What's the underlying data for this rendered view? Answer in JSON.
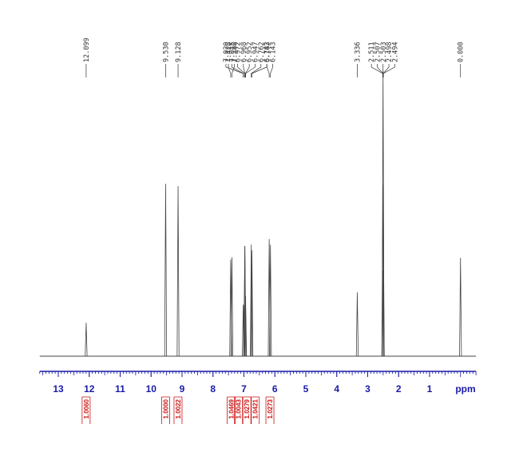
{
  "chart_data": {
    "type": "nmr",
    "x_label": "ppm",
    "xlim": [
      13.6,
      -0.5
    ],
    "xticks": [
      13,
      12,
      11,
      10,
      9,
      8,
      7,
      6,
      5,
      4,
      3,
      2,
      1
    ],
    "ylim": [
      0,
      100
    ],
    "color": "#444444",
    "axis_color": "#1a1aa8",
    "x": [
      12.099,
      9.53,
      9.128,
      7.428,
      7.388,
      7.02,
      7.015,
      6.972,
      6.968,
      6.952,
      6.947,
      6.762,
      6.742,
      6.183,
      6.143,
      3.336,
      2.511,
      2.507,
      2.503,
      2.498,
      2.494,
      0.0
    ],
    "x_labels": [
      "12.099",
      "9.530",
      "9.128",
      "7.428",
      "7.388",
      "7.020",
      "7.015",
      "6.972",
      "6.968",
      "6.952",
      "6.947",
      "6.762",
      "6.742",
      "6.183",
      "6.143",
      "3.336",
      "2.511",
      "2.507",
      "2.503",
      "2.498",
      "2.494",
      "0.000"
    ],
    "values": [
      11.7,
      60.3,
      59.5,
      33.8,
      34.6,
      18,
      18,
      38.5,
      38.5,
      21,
      21,
      39,
      37,
      41,
      39,
      22.3,
      30,
      60,
      100,
      60,
      30,
      34.4
    ],
    "integrals": {
      "color": "#cc1111",
      "x": [
        12.1,
        9.53,
        9.13,
        7.41,
        7.0,
        6.96,
        6.75,
        6.16
      ],
      "values": [
        1.006,
        1.0,
        1.0022,
        1.0469,
        1.0043,
        1.0279,
        1.0421,
        1.0273
      ],
      "value_labels": [
        "1.0060",
        "1.0000",
        "1.0022",
        "1.0469",
        "1.0043",
        "1.0279",
        "1.0421",
        "1.0273"
      ]
    }
  }
}
